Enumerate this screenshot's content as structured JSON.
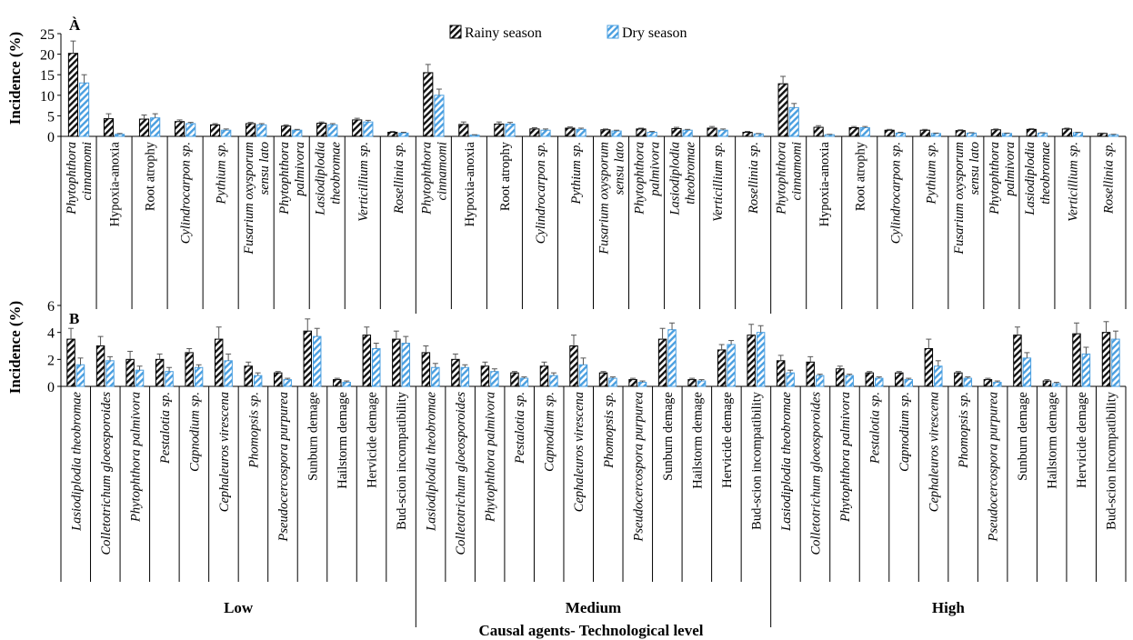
{
  "chart_data": [
    {
      "type": "bar",
      "panel_tag": "À",
      "ylabel": "Incidence  (%)",
      "ylim": [
        0,
        25
      ],
      "yticks": [
        "0",
        "5",
        "10",
        "15",
        "20",
        "25"
      ],
      "grid": false,
      "legend": [
        {
          "name": "Rainy season",
          "pattern": "black-hatch"
        },
        {
          "name": "Dry season",
          "pattern": "blue-hatch"
        }
      ],
      "legend_position": "top-center",
      "groups": [
        "",
        "",
        ""
      ],
      "categories": [
        {
          "lines": [
            "Phytophthora",
            "cinnamomi"
          ],
          "italic": [
            true,
            true
          ]
        },
        {
          "lines": [
            "Hypoxia-anoxia"
          ],
          "italic": [
            false
          ]
        },
        {
          "lines": [
            "Root atrophy"
          ],
          "italic": [
            false
          ]
        },
        {
          "lines": [
            "Cylindrocarpon sp."
          ],
          "italic": [
            true
          ]
        },
        {
          "lines": [
            "Pythium  sp."
          ],
          "italic": [
            true
          ]
        },
        {
          "lines": [
            "Fusarium oxysporum",
            "sensu lato"
          ],
          "italic": [
            true,
            true
          ]
        },
        {
          "lines": [
            "Phytophthora",
            "palmivora"
          ],
          "italic": [
            true,
            true
          ]
        },
        {
          "lines": [
            "Lasiodiplodia",
            "theobromae"
          ],
          "italic": [
            true,
            true
          ]
        },
        {
          "lines": [
            "Verticillium sp."
          ],
          "italic": [
            true
          ]
        },
        {
          "lines": [
            "Rosellinia sp."
          ],
          "italic": [
            true
          ]
        }
      ],
      "series": [
        {
          "name": "Rainy season",
          "values": [
            [
              20.2,
              4.3,
              4.2,
              3.6,
              2.8,
              3.1,
              2.5,
              3.2,
              4.0,
              1.0
            ],
            [
              15.5,
              2.9,
              3.0,
              1.8,
              2.0,
              1.6,
              1.8,
              1.9,
              2.0,
              1.0
            ],
            [
              12.8,
              2.2,
              2.1,
              1.5,
              1.5,
              1.4,
              1.6,
              1.7,
              1.8,
              0.7
            ]
          ],
          "errors": [
            [
              3.0,
              1.2,
              1.0,
              0.4,
              0.3,
              0.3,
              0.3,
              0.3,
              0.4,
              0.2
            ],
            [
              2.0,
              0.6,
              0.5,
              0.3,
              0.3,
              0.2,
              0.2,
              0.3,
              0.4,
              0.2
            ],
            [
              1.8,
              0.4,
              0.3,
              0.2,
              0.2,
              0.2,
              0.2,
              0.2,
              0.2,
              0.1
            ]
          ]
        },
        {
          "name": "Dry season",
          "values": [
            [
              13.0,
              0.5,
              4.5,
              3.1,
              1.5,
              2.8,
              1.5,
              2.8,
              3.5,
              0.8
            ],
            [
              10.0,
              0.3,
              3.0,
              1.5,
              1.7,
              1.3,
              1.0,
              1.5,
              1.5,
              0.6
            ],
            [
              7.0,
              0.4,
              2.1,
              0.8,
              0.7,
              0.8,
              0.7,
              0.8,
              0.9,
              0.4
            ]
          ],
          "errors": [
            [
              2.0,
              0.2,
              1.0,
              0.3,
              0.3,
              0.3,
              0.2,
              0.3,
              0.4,
              0.2
            ],
            [
              1.5,
              0.1,
              0.4,
              0.3,
              0.3,
              0.2,
              0.2,
              0.2,
              0.3,
              0.1
            ],
            [
              1.0,
              0.1,
              0.3,
              0.2,
              0.1,
              0.1,
              0.1,
              0.1,
              0.1,
              0.1
            ]
          ]
        }
      ]
    },
    {
      "type": "bar",
      "panel_tag": "B",
      "ylabel": "Incidence  (%)",
      "ylim": [
        0,
        6
      ],
      "yticks": [
        "0",
        "2",
        "4",
        "6"
      ],
      "grid": false,
      "groups": [
        "Low",
        "Medium",
        "High"
      ],
      "categories": [
        {
          "lines": [
            "Lasiodiplodia theobromae"
          ],
          "italic": [
            true
          ]
        },
        {
          "lines": [
            "Colletotrichum gloeosporoides"
          ],
          "italic": [
            true
          ]
        },
        {
          "lines": [
            "Phytophthora palmivora"
          ],
          "italic": [
            true
          ]
        },
        {
          "lines": [
            "Pestalotia sp."
          ],
          "italic": [
            true
          ]
        },
        {
          "lines": [
            "Capnodium sp."
          ],
          "italic": [
            true
          ]
        },
        {
          "lines": [
            "Cephaleuros virescena"
          ],
          "italic": [
            true
          ]
        },
        {
          "lines": [
            "Phomopsis sp."
          ],
          "italic": [
            true
          ]
        },
        {
          "lines": [
            "Pseudocercospora purpurea"
          ],
          "italic": [
            true
          ]
        },
        {
          "lines": [
            "Sunburn demage"
          ],
          "italic": [
            false
          ]
        },
        {
          "lines": [
            "Hailstorm demage"
          ],
          "italic": [
            false
          ]
        },
        {
          "lines": [
            "Hervicide  demage"
          ],
          "italic": [
            false
          ]
        },
        {
          "lines": [
            "Bud-scion incompatibility"
          ],
          "italic": [
            false
          ]
        }
      ],
      "series": [
        {
          "name": "Rainy season",
          "values": [
            [
              3.5,
              3.0,
              2.0,
              2.0,
              2.5,
              3.5,
              1.5,
              1.0,
              4.1,
              0.5,
              3.8,
              3.5
            ],
            [
              2.5,
              2.0,
              1.5,
              1.0,
              1.5,
              3.0,
              1.0,
              0.5,
              3.5,
              0.5,
              2.7,
              3.8
            ],
            [
              1.9,
              1.8,
              1.3,
              1.0,
              1.0,
              2.8,
              1.0,
              0.5,
              3.8,
              0.4,
              3.9,
              4.0
            ]
          ],
          "errors": [
            [
              0.8,
              0.7,
              0.6,
              0.4,
              0.3,
              0.9,
              0.3,
              0.1,
              0.9,
              0.1,
              0.6,
              0.6
            ],
            [
              0.5,
              0.4,
              0.3,
              0.1,
              0.3,
              0.8,
              0.1,
              0.1,
              0.8,
              0.1,
              0.4,
              0.8
            ],
            [
              0.4,
              0.4,
              0.2,
              0.1,
              0.1,
              0.7,
              0.1,
              0.1,
              0.6,
              0.1,
              0.8,
              0.8
            ]
          ]
        },
        {
          "name": "Dry season",
          "values": [
            [
              1.6,
              1.9,
              1.2,
              1.1,
              1.4,
              1.9,
              0.8,
              0.5,
              3.7,
              0.3,
              2.8,
              3.2
            ],
            [
              1.4,
              1.4,
              1.1,
              0.6,
              0.8,
              1.6,
              0.6,
              0.3,
              4.2,
              0.4,
              3.1,
              4.0
            ],
            [
              1.0,
              0.8,
              0.8,
              0.6,
              0.5,
              1.5,
              0.6,
              0.3,
              2.1,
              0.2,
              2.4,
              3.5
            ]
          ],
          "errors": [
            [
              0.5,
              0.3,
              0.3,
              0.3,
              0.2,
              0.5,
              0.2,
              0.1,
              0.6,
              0.1,
              0.4,
              0.5
            ],
            [
              0.3,
              0.2,
              0.2,
              0.1,
              0.2,
              0.5,
              0.1,
              0.1,
              0.5,
              0.1,
              0.3,
              0.5
            ],
            [
              0.2,
              0.1,
              0.1,
              0.1,
              0.1,
              0.4,
              0.1,
              0.1,
              0.4,
              0.1,
              0.5,
              0.6
            ]
          ]
        }
      ]
    }
  ],
  "xlabel": "Causal agents- Technological level"
}
